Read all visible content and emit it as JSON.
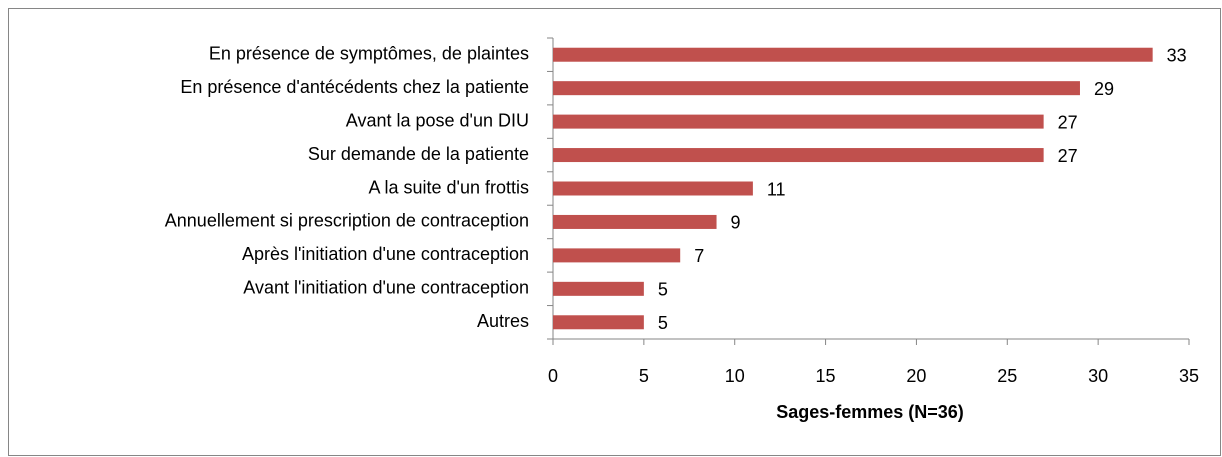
{
  "chart_data": {
    "type": "bar",
    "orientation": "horizontal",
    "categories": [
      "En présence de symptômes, de plaintes",
      "En présence d'antécédents chez la patiente",
      "Avant la pose d'un DIU",
      "Sur demande de la patiente",
      "A la suite d'un frottis",
      "Annuellement si prescription de contraception",
      "Après l'initiation d'une contraception",
      "Avant l'initiation d'une contraception",
      "Autres"
    ],
    "values": [
      33,
      29,
      27,
      27,
      11,
      9,
      7,
      5,
      5
    ],
    "color": "#c0504d",
    "xlabel": "Sages-femmes (N=36)",
    "xlim": [
      0,
      35
    ],
    "xticks": [
      0,
      5,
      10,
      15,
      20,
      25,
      30,
      35
    ],
    "grid": false
  }
}
